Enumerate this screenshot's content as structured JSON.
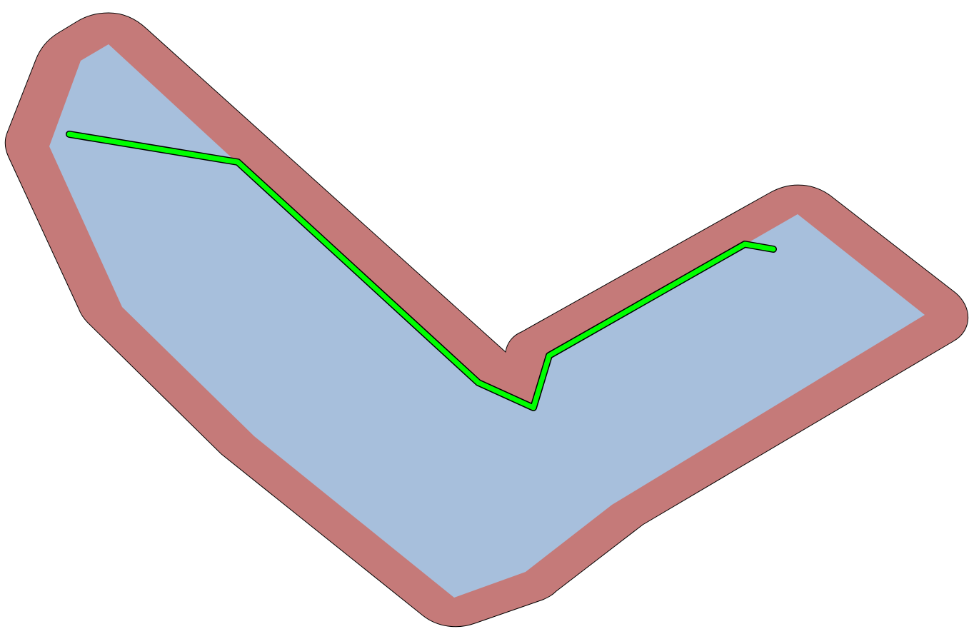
{
  "colors": {
    "background": "#ffffff",
    "buffer_fill": "#c57a79",
    "buffer_stroke": "#000000",
    "polygon_fill": "#a7bfdc",
    "path_fill": "#00ff00",
    "path_outline": "#000000"
  }
}
